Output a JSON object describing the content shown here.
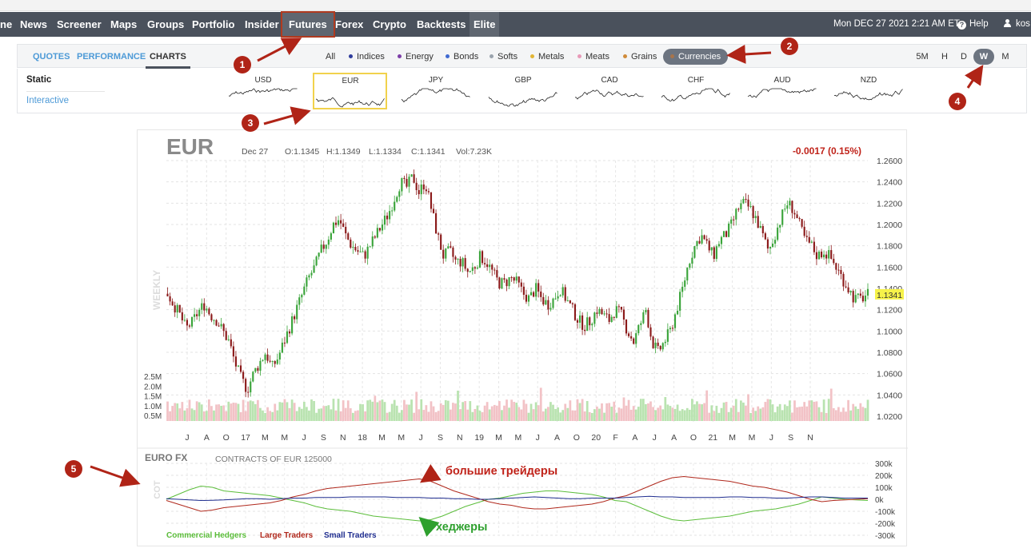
{
  "nav": {
    "items": [
      "ne",
      "News",
      "Screener",
      "Maps",
      "Groups",
      "Portfolio",
      "Insider",
      "Futures",
      "Forex",
      "Crypto",
      "Backtests",
      "Elite"
    ],
    "active": "Futures",
    "datetime": "Mon DEC 27 2021 2:21 AM ET",
    "help": "Help",
    "user": "kos"
  },
  "subnav": {
    "tabs": [
      "QUOTES",
      "PERFORMANCE",
      "CHARTS"
    ],
    "active_tab": "CHARTS",
    "groups": [
      {
        "label": "All",
        "color": ""
      },
      {
        "label": "Indices",
        "color": "#2f3d9c"
      },
      {
        "label": "Energy",
        "color": "#7d3fa8"
      },
      {
        "label": "Bonds",
        "color": "#3f6ad1"
      },
      {
        "label": "Softs",
        "color": "#9aa3ad"
      },
      {
        "label": "Metals",
        "color": "#e2b534"
      },
      {
        "label": "Meats",
        "color": "#e89ab8"
      },
      {
        "label": "Grains",
        "color": "#d08b3a"
      },
      {
        "label": "Currencies",
        "color": "#a8744a"
      }
    ],
    "active_group": "Currencies",
    "timeframes": [
      "5M",
      "H",
      "D",
      "W",
      "M"
    ],
    "active_timeframe": "W"
  },
  "panel": {
    "modes": [
      "Static",
      "Interactive"
    ],
    "currencies": [
      "USD",
      "EUR",
      "JPY",
      "GBP",
      "CAD",
      "CHF",
      "AUD",
      "NZD"
    ],
    "selected_currency": "EUR"
  },
  "chart": {
    "symbol": "EUR",
    "date": "Dec 27",
    "open": "O:1.1345",
    "high": "H:1.1349",
    "low": "L:1.1334",
    "close": "C:1.1341",
    "volume": "Vol:7.23K",
    "change": "-0.0017 (0.15%)",
    "change_color": "#c0231a",
    "period_label": "WEEKLY",
    "last_price": "1.1341",
    "last_price_value": 1.1341,
    "price_ticks": [
      "1.2600",
      "1.2400",
      "1.2200",
      "1.2000",
      "1.1800",
      "1.1600",
      "1.1400",
      "1.1200",
      "1.1000",
      "1.0800",
      "1.0600",
      "1.0400",
      "1.0200"
    ],
    "volume_ticks": [
      "2.5M",
      "2.0M",
      "1.5M",
      "1.0M",
      "0.5M"
    ],
    "x_ticks": [
      "J",
      "A",
      "O",
      "17",
      "M",
      "M",
      "J",
      "S",
      "N",
      "18",
      "M",
      "M",
      "J",
      "S",
      "N",
      "19",
      "M",
      "M",
      "J",
      "A",
      "O",
      "20",
      "F",
      "A",
      "J",
      "A",
      "O",
      "21",
      "M",
      "M",
      "J",
      "S",
      "N"
    ],
    "up_color": "#3aa43a",
    "down_color": "#8b1a1a"
  },
  "chart_data": {
    "type": "line",
    "title": "EUR",
    "ylabel": "",
    "ylim": [
      1.02,
      1.26
    ],
    "x_range": [
      "2016-06",
      "2021-12"
    ],
    "series": [
      {
        "values": [
          1.135,
          1.125,
          1.115,
          1.102,
          1.108,
          1.118,
          1.125,
          1.115,
          1.11,
          1.1,
          1.09,
          1.07,
          1.055,
          1.045,
          1.06,
          1.07,
          1.08,
          1.065,
          1.075,
          1.09,
          1.105,
          1.12,
          1.135,
          1.15,
          1.16,
          1.175,
          1.185,
          1.2,
          1.205,
          1.19,
          1.18,
          1.175,
          1.17,
          1.18,
          1.19,
          1.2,
          1.21,
          1.225,
          1.24,
          1.235,
          1.245,
          1.23,
          1.24,
          1.215,
          1.19,
          1.17,
          1.175,
          1.165,
          1.165,
          1.155,
          1.16,
          1.17,
          1.165,
          1.155,
          1.145,
          1.145,
          1.15,
          1.145,
          1.135,
          1.13,
          1.14,
          1.13,
          1.125,
          1.13,
          1.14,
          1.13,
          1.12,
          1.11,
          1.105,
          1.11,
          1.12,
          1.115,
          1.11,
          1.12,
          1.115,
          1.1,
          1.09,
          1.105,
          1.12,
          1.09,
          1.08,
          1.09,
          1.1,
          1.12,
          1.14,
          1.165,
          1.18,
          1.19,
          1.18,
          1.17,
          1.185,
          1.19,
          1.2,
          1.215,
          1.22,
          1.215,
          1.205,
          1.19,
          1.175,
          1.19,
          1.205,
          1.22,
          1.215,
          1.2,
          1.185,
          1.18,
          1.17,
          1.175,
          1.17,
          1.16,
          1.15,
          1.14,
          1.13,
          1.13,
          1.134
        ]
      }
    ]
  },
  "cot": {
    "title": "EURO FX",
    "subtitle": "CONTRACTS OF EUR 125000",
    "side_label": "COT",
    "y_ticks": [
      "300k",
      "200k",
      "100k",
      "0k",
      "-100k",
      "-200k",
      "-300k"
    ],
    "legend": [
      {
        "label": "Commercial Hedgers",
        "color": "#5bbd3a"
      },
      {
        "label": "Large Traders",
        "color": "#b0281c"
      },
      {
        "label": "Small Traders",
        "color": "#1f2d8f"
      }
    ]
  },
  "cot_data": {
    "type": "line",
    "ylim": [
      -300,
      300
    ],
    "series": [
      {
        "name": "Commercial Hedgers",
        "values": [
          0,
          40,
          80,
          110,
          100,
          70,
          60,
          50,
          40,
          30,
          10,
          -10,
          -30,
          -60,
          -80,
          -90,
          -100,
          -120,
          -140,
          -150,
          -160,
          -170,
          -180,
          -170,
          -140,
          -100,
          -60,
          -30,
          0,
          10,
          30,
          50,
          60,
          70,
          70,
          60,
          50,
          40,
          20,
          -10,
          -20,
          -60,
          -100,
          -140,
          -170,
          -180,
          -170,
          -160,
          -150,
          -140,
          -120,
          -100,
          -90,
          -80,
          -60,
          -40,
          -10,
          20,
          10,
          0,
          -5,
          -10
        ]
      },
      {
        "name": "Large Traders",
        "values": [
          -10,
          -40,
          -70,
          -100,
          -90,
          -70,
          -60,
          -50,
          -40,
          -30,
          -10,
          20,
          40,
          70,
          90,
          100,
          110,
          120,
          130,
          140,
          150,
          160,
          170,
          150,
          110,
          70,
          40,
          10,
          -20,
          -40,
          -50,
          -70,
          -80,
          -80,
          -70,
          -60,
          -50,
          -40,
          -20,
          10,
          30,
          70,
          110,
          150,
          180,
          190,
          180,
          170,
          160,
          150,
          130,
          110,
          100,
          80,
          60,
          30,
          0,
          -20,
          -10,
          -5,
          0,
          5
        ]
      },
      {
        "name": "Small Traders",
        "values": [
          5,
          0,
          -5,
          -10,
          -8,
          -5,
          0,
          5,
          5,
          0,
          5,
          10,
          10,
          15,
          15,
          15,
          20,
          20,
          20,
          20,
          15,
          15,
          15,
          10,
          10,
          5,
          5,
          0,
          0,
          5,
          10,
          15,
          20,
          15,
          10,
          5,
          5,
          10,
          10,
          10,
          15,
          20,
          25,
          20,
          20,
          15,
          15,
          15,
          15,
          20,
          20,
          15,
          15,
          10,
          10,
          15,
          20,
          20,
          15,
          10,
          10,
          10
        ]
      }
    ]
  },
  "annotations": {
    "markers": [
      "1",
      "2",
      "3",
      "4",
      "5"
    ],
    "big_traders": "большие трейдеры",
    "hedgers": "хеджеры"
  }
}
